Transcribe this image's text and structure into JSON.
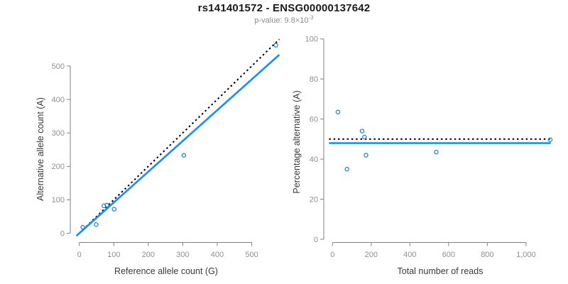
{
  "header": {
    "title": "rs141401572 - ENSG00000137642",
    "subtitle_main": "p-value: 9.8×10",
    "subtitle_exponent": "-3"
  },
  "colors": {
    "fit_line_blue": "#1e8ff2",
    "point_blue": "#2580d3",
    "expected_line_black": "#000000",
    "axis_gray": "#808080",
    "tick_label_gray": "#8f8f8f",
    "title_black": "#1a1a1a",
    "subtitle_gray": "#8c8c8c",
    "axis_title_dark": "#3a3a3a",
    "background": "#ffffff"
  },
  "chart_data": [
    {
      "type": "scatter",
      "panel": "left",
      "xlabel": "Reference allele count (G)",
      "ylabel": "Alternative allele count (A)",
      "xticks": [
        0,
        100,
        200,
        300,
        400,
        500
      ],
      "xtick_labels": [
        "0",
        "100",
        "200",
        "300",
        "400",
        "500"
      ],
      "yticks": [
        0,
        100,
        200,
        300,
        400,
        500
      ],
      "ytick_labels": [
        "0",
        "100",
        "200",
        "300",
        "400",
        "500"
      ],
      "xlim": [
        0,
        580
      ],
      "ylim": [
        0,
        585
      ],
      "grid": false,
      "points": [
        [
          10,
          18
        ],
        [
          49,
          26
        ],
        [
          71,
          82
        ],
        [
          80,
          84
        ],
        [
          101,
          72
        ],
        [
          303,
          233
        ],
        [
          570,
          562
        ]
      ],
      "lines": [
        {
          "name": "identity-expected",
          "kind": "ab",
          "intercept": 0,
          "slope": 1.0,
          "style": "dotted",
          "color_key": "expected_line_black"
        },
        {
          "name": "fitted-ratio",
          "kind": "ab",
          "intercept": 0,
          "slope": 0.92,
          "style": "solid",
          "color_key": "fit_line_blue"
        }
      ]
    },
    {
      "type": "scatter",
      "panel": "right",
      "xlabel": "Total number of reads",
      "ylabel": "Percentage alternative (A)",
      "xticks": [
        0,
        200,
        400,
        600,
        800,
        1000
      ],
      "xtick_labels": [
        "0",
        "200",
        "400",
        "600",
        "800",
        "1,000"
      ],
      "yticks": [
        0,
        20,
        40,
        60,
        80,
        100
      ],
      "ytick_labels": [
        "0",
        "20",
        "40",
        "60",
        "80",
        "100"
      ],
      "xlim": [
        0,
        1150
      ],
      "ylim": [
        0,
        100
      ],
      "grid": false,
      "points": [
        [
          28,
          63.5
        ],
        [
          75,
          35
        ],
        [
          153,
          54
        ],
        [
          165,
          51
        ],
        [
          173,
          42
        ],
        [
          536,
          43.5
        ],
        [
          1125,
          49.7
        ]
      ],
      "lines": [
        {
          "name": "expected-50pct",
          "kind": "h",
          "value": 50,
          "style": "dotted",
          "color_key": "expected_line_black"
        },
        {
          "name": "fitted-pct",
          "kind": "h",
          "value": 48,
          "style": "solid",
          "color_key": "fit_line_blue"
        }
      ]
    }
  ]
}
